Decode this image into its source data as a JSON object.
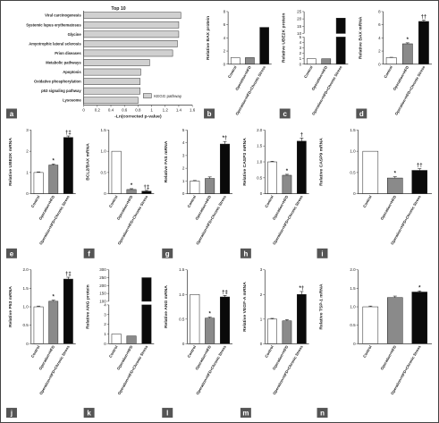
{
  "figure": {
    "bg": "#ffffff",
    "border": "#444444",
    "label_fill": "#555555",
    "bar_colors": {
      "control": "#ffffff",
      "operation": "#8a8a8a",
      "stress": "#0a0a0a",
      "kegg": "#d0d0d0"
    }
  },
  "chart_data": [
    {
      "panel": "a",
      "type": "bar",
      "orientation": "horizontal",
      "title": "Top 10",
      "categories": [
        "Viral carcinogenesis",
        "Systemic lupus erythematosus",
        "Glycine",
        "Amyotrophic lateral sclerosis",
        "Prion diseases",
        "Metabolic pathways",
        "Apoptosis",
        "Oxidative phosphorylation",
        "p53 signaling pathway",
        "Lysosome"
      ],
      "values": [
        1.43,
        1.4,
        1.4,
        1.38,
        1.31,
        0.97,
        0.84,
        0.83,
        0.83,
        0.8
      ],
      "xlabel": "-Ln(corrected p-value)",
      "xticks": [
        "0",
        "0.2",
        "0.4",
        "0.6",
        "0.8",
        "1",
        "1.2",
        "1.4",
        "1.6"
      ],
      "xlim": [
        0,
        1.6
      ],
      "legend": "KEGG pathway",
      "legend_position": "lower-right",
      "grid": false
    },
    {
      "panel": "b",
      "type": "bar",
      "ylabel": "Relative BAX protein",
      "categories": [
        "Control",
        "Operation+HFD",
        "Operation+HFD+Chronic Stress"
      ],
      "values": [
        1.0,
        1.0,
        5.6
      ],
      "ylim": [
        0,
        8
      ],
      "yticks": [
        "0",
        "2",
        "4",
        "6",
        "8"
      ],
      "sig": [
        "",
        "",
        ""
      ]
    },
    {
      "panel": "c",
      "type": "bar",
      "ylabel": "Relative UBE2K protein",
      "categories": [
        "Control",
        "Operation+HFD",
        "Operation+HFD+Chronic Stress"
      ],
      "values": [
        1.0,
        1.0,
        20.5
      ],
      "broken_axis": true,
      "lower_range": [
        0,
        5
      ],
      "upper_range": [
        10,
        25
      ],
      "yticks_upper": [
        "10",
        "15",
        "20",
        "25"
      ],
      "yticks_lower": [
        "0",
        "1",
        "2",
        "3",
        "4",
        "5"
      ],
      "sig": [
        "",
        "",
        ""
      ]
    },
    {
      "panel": "d",
      "type": "bar",
      "ylabel": "Relative BAX mRNA",
      "categories": [
        "Control",
        "Operation+HFD",
        "Operation+HFD+Chronic Stress"
      ],
      "values": [
        1.0,
        3.1,
        6.5
      ],
      "errors": [
        0.05,
        0.15,
        0.2
      ],
      "ylim": [
        0,
        8
      ],
      "yticks": [
        "0",
        "2",
        "4",
        "6",
        "8"
      ],
      "sig": [
        "",
        "*",
        "††"
      ]
    },
    {
      "panel": "e",
      "type": "bar",
      "ylabel": "Relative UBE2K mRNA",
      "categories": [
        "Control",
        "Operation+HFD",
        "Operation+HFD+Chronic Stress"
      ],
      "values": [
        1.0,
        1.35,
        2.65
      ],
      "errors": [
        0.03,
        0.05,
        0.07
      ],
      "ylim": [
        0,
        3
      ],
      "yticks": [
        "0",
        "1",
        "2",
        "3"
      ],
      "sig": [
        "",
        "*",
        "†‡"
      ]
    },
    {
      "panel": "f",
      "type": "bar",
      "ylabel": "BCL2/BAX mRNA",
      "categories": [
        "Control",
        "Operation+HFD",
        "Operation+HFD+Chronic Stress"
      ],
      "values": [
        1.0,
        0.1,
        0.06
      ],
      "errors": [
        0.0,
        0.02,
        0.02
      ],
      "ylim": [
        0,
        1.5
      ],
      "yticks": [
        "0",
        "0.5",
        "1.0",
        "1.5"
      ],
      "sig": [
        "",
        "*",
        "†‡"
      ]
    },
    {
      "panel": "g",
      "type": "bar",
      "ylabel": "Relative FAS mRNA",
      "categories": [
        "Control",
        "Operation+HFD",
        "Operation+HFD+Chronic Stress"
      ],
      "values": [
        1.0,
        1.2,
        3.9
      ],
      "errors": [
        0.04,
        0.12,
        0.2
      ],
      "ylim": [
        0,
        5
      ],
      "yticks": [
        "0",
        "1",
        "2",
        "3",
        "4",
        "5"
      ],
      "sig": [
        "",
        "",
        "*†"
      ]
    },
    {
      "panel": "h",
      "type": "bar",
      "ylabel": "Relative CASP3 mRNA",
      "categories": [
        "Control",
        "Operation+HFD",
        "Operation+HFD+Chronic Stress"
      ],
      "values": [
        1.0,
        0.58,
        1.65
      ],
      "errors": [
        0.02,
        0.03,
        0.1
      ],
      "ylim": [
        0,
        2
      ],
      "yticks": [
        "0",
        "0.5",
        "1.0",
        "1.5",
        "2.0"
      ],
      "sig": [
        "",
        "*",
        "†"
      ]
    },
    {
      "panel": "i",
      "type": "bar",
      "ylabel": "Relative CASP9 mRNA",
      "categories": [
        "Control",
        "Operation+HFD",
        "Operation+HFD+Chronic Stress"
      ],
      "values": [
        1.0,
        0.37,
        0.55
      ],
      "errors": [
        0.0,
        0.03,
        0.04
      ],
      "ylim": [
        0,
        1.5
      ],
      "yticks": [
        "0",
        "0.5",
        "1.0",
        "1.5"
      ],
      "sig": [
        "",
        "*",
        "††"
      ]
    },
    {
      "panel": "j",
      "type": "bar",
      "ylabel": "Relative P53 mRNA",
      "categories": [
        "Control",
        "Operation+HFD",
        "Operation+HFD+Chronic Stress"
      ],
      "values": [
        1.0,
        1.15,
        1.75
      ],
      "errors": [
        0.02,
        0.03,
        0.05
      ],
      "ylim": [
        0,
        2
      ],
      "yticks": [
        "0",
        "0.5",
        "1.0",
        "1.5",
        "2.0"
      ],
      "sig": [
        "",
        "*",
        "†‡"
      ]
    },
    {
      "panel": "k",
      "type": "bar",
      "ylabel": "Relative ANG protein",
      "categories": [
        "Control",
        "Operation+HFD",
        "Operation+HFD+Chronic Stress"
      ],
      "values": [
        1.0,
        0.8,
        250
      ],
      "broken_axis": true,
      "lower_range": [
        0,
        4
      ],
      "upper_range": [
        100,
        300
      ],
      "yticks_upper": [
        "100",
        "150",
        "200",
        "250",
        "300"
      ],
      "yticks_lower": [
        "0",
        "1",
        "2",
        "3",
        "4"
      ],
      "sig": [
        "",
        "",
        ""
      ]
    },
    {
      "panel": "l",
      "type": "bar",
      "ylabel": "Relative ANG mRNA",
      "categories": [
        "Control",
        "Operation+HFD",
        "Operation+HFD+Chronic Stress"
      ],
      "values": [
        1.0,
        0.52,
        0.95
      ],
      "errors": [
        0.0,
        0.02,
        0.03
      ],
      "ylim": [
        0,
        1.5
      ],
      "yticks": [
        "0",
        "0.5",
        "1.0",
        "1.5"
      ],
      "sig": [
        "",
        "*",
        "†‡"
      ]
    },
    {
      "panel": "m",
      "type": "bar",
      "ylabel": "Relative VEGF-A mRNA",
      "categories": [
        "Control",
        "Operation+HFD",
        "Operation+HFD+Chronic Stress"
      ],
      "values": [
        1.0,
        0.93,
        2.0
      ],
      "errors": [
        0.03,
        0.05,
        0.12
      ],
      "ylim": [
        0,
        3
      ],
      "yticks": [
        "0",
        "1",
        "2",
        "3"
      ],
      "sig": [
        "",
        "",
        "*†"
      ]
    },
    {
      "panel": "n",
      "type": "bar",
      "ylabel": "Relative TSP-1 mRNA",
      "categories": [
        "Control",
        "Operation+HFD",
        "Operation+HFD+Chronic Stress"
      ],
      "values": [
        1.0,
        1.25,
        1.4
      ],
      "errors": [
        0.02,
        0.04,
        0.03
      ],
      "ylim": [
        0,
        2
      ],
      "yticks": [
        "0",
        "0.5",
        "1.0",
        "1.5",
        "2.0"
      ],
      "sig": [
        "",
        "",
        "*"
      ]
    }
  ]
}
